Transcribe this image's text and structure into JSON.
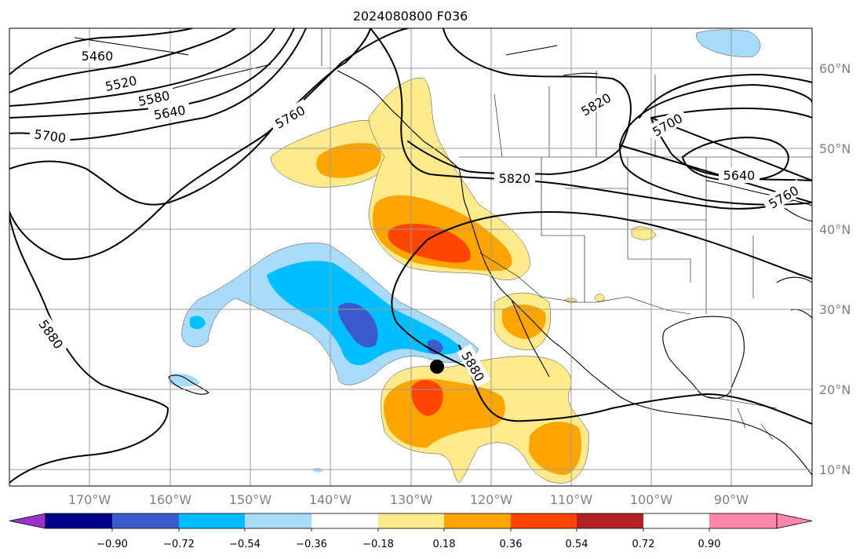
{
  "title": "2024080800 F036",
  "lat_labels": [
    "60°N",
    "50°N",
    "40°N",
    "30°N",
    "20°N",
    "10°N"
  ],
  "lon_labels": [
    "170°W",
    "160°W",
    "150°W",
    "140°W",
    "130°W",
    "120°W",
    "110°W",
    "100°W",
    "90°W"
  ],
  "contour_labels": [
    "5460",
    "5520",
    "5580",
    "5640",
    "5700",
    "5760",
    "5820",
    "5880",
    "5700",
    "5640",
    "5760",
    "5820",
    "5880"
  ],
  "colorbar": {
    "tick_labels": [
      "−0.90",
      "−0.72",
      "−0.54",
      "−0.36",
      "−0.18",
      "0.18",
      "0.36",
      "0.54",
      "0.72",
      "0.90"
    ],
    "colors": [
      "#9932cc",
      "#00008b",
      "#3a5bcd",
      "#00bfff",
      "#a8dcfa",
      "#ffffff",
      "#ffeb8c",
      "#ffa500",
      "#ff4500",
      "#b22222",
      "#ff88aa"
    ]
  },
  "storm_marker": {
    "name": "storm-center",
    "lon": -127.2,
    "lat": 22.6
  }
}
